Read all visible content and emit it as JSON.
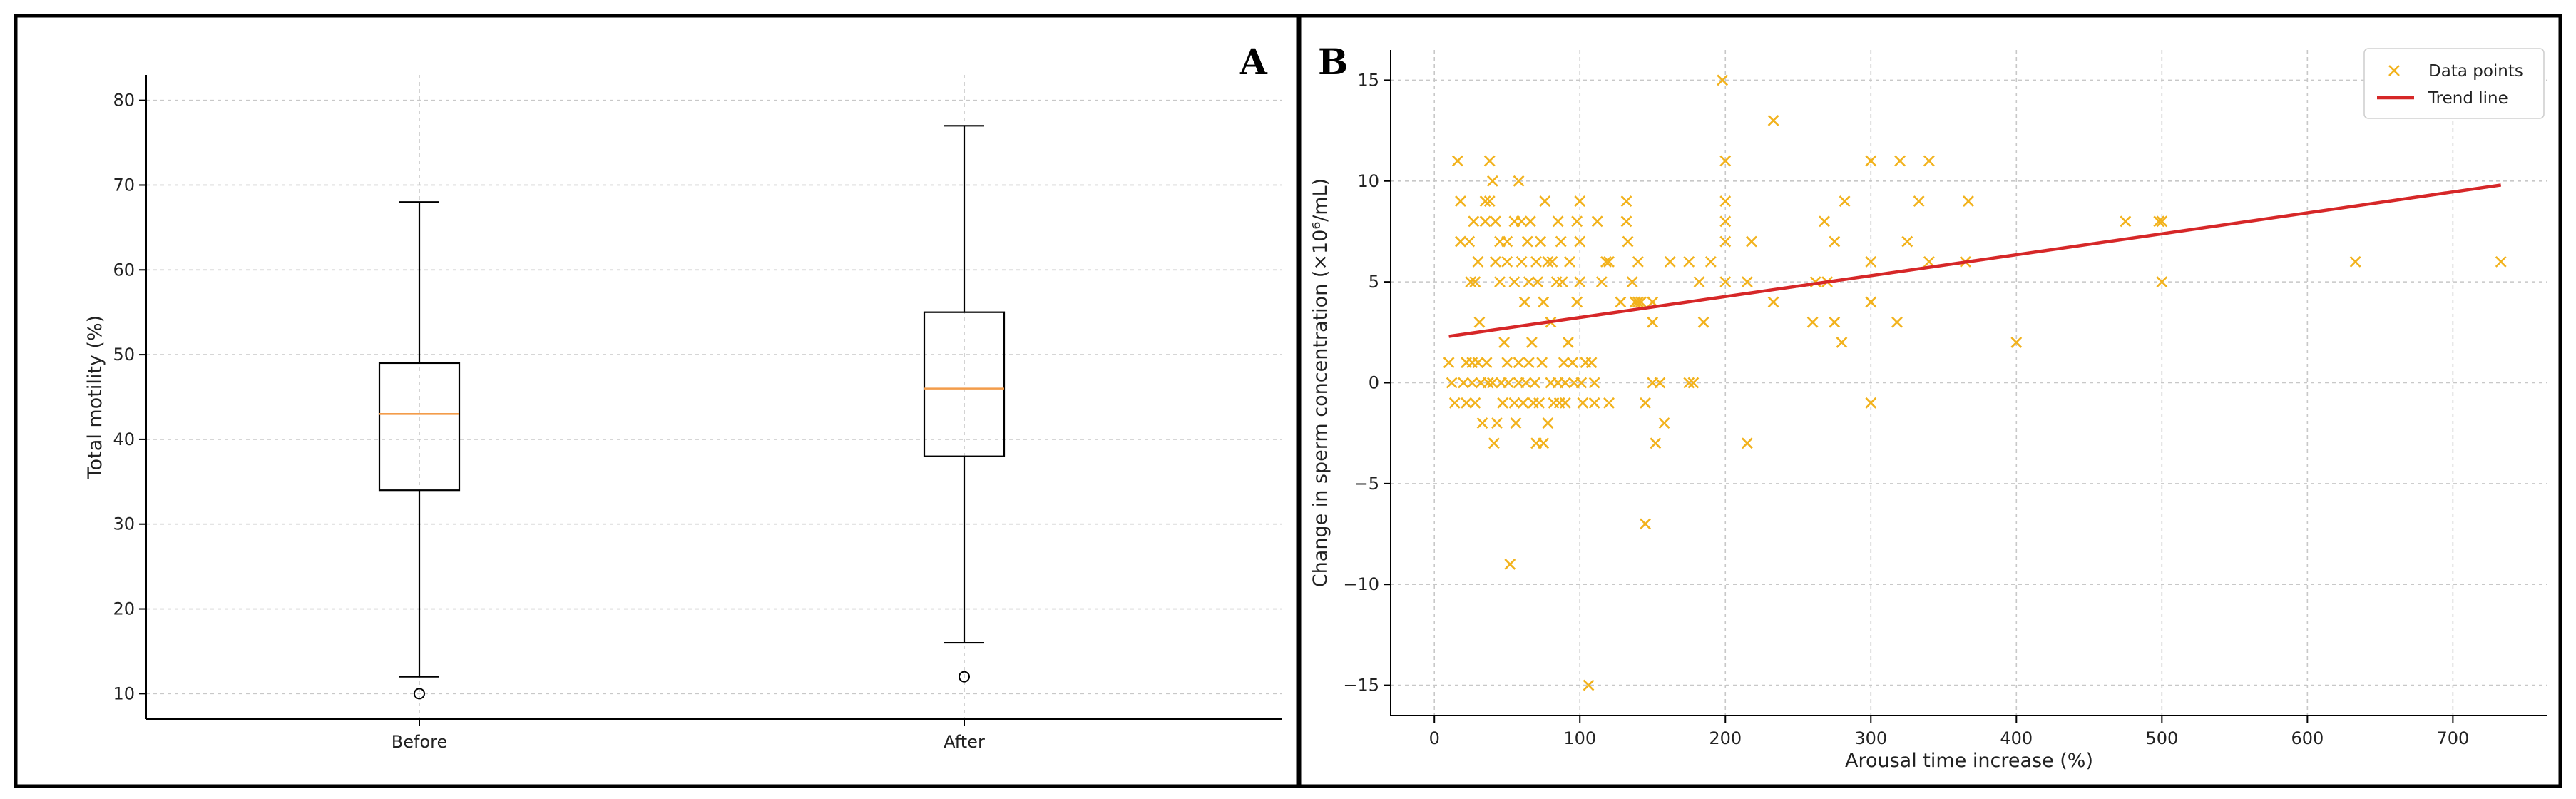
{
  "chart_data": [
    {
      "panel": "A",
      "type": "box",
      "title": "",
      "xlabel": "",
      "ylabel": "Total motility (%)",
      "ylim": [
        7,
        83
      ],
      "yticks": [
        10,
        20,
        30,
        40,
        50,
        60,
        70,
        80
      ],
      "grid": true,
      "categories": [
        "Before",
        "After"
      ],
      "boxes": [
        {
          "name": "Before",
          "whisker_low": 12,
          "q1": 34,
          "median": 43,
          "q3": 49,
          "whisker_high": 68,
          "outliers": [
            10
          ]
        },
        {
          "name": "After",
          "whisker_low": 16,
          "q1": 38,
          "median": 46,
          "q3": 55,
          "whisker_high": 77,
          "outliers": [
            12
          ]
        }
      ],
      "colors": {
        "box": "#000000",
        "median": "#f39c4a",
        "grid": "#c8c8c8"
      }
    },
    {
      "panel": "B",
      "type": "scatter",
      "title": "",
      "xlabel": "Arousal time increase (%)",
      "ylabel": "Change in sperm concentration (×10⁶/mL)",
      "xlim": [
        -30,
        765
      ],
      "ylim": [
        -16.5,
        16.5
      ],
      "xticks": [
        0,
        100,
        200,
        300,
        400,
        500,
        600,
        700
      ],
      "yticks": [
        -15,
        -10,
        -5,
        0,
        5,
        10,
        15
      ],
      "grid": true,
      "legend": {
        "position": "top-right",
        "entries": [
          "Data points",
          "Trend line"
        ]
      },
      "series": [
        {
          "name": "Data points",
          "marker": "x",
          "color": "#f2b21c",
          "points": [
            [
              10,
              1
            ],
            [
              12,
              0
            ],
            [
              14,
              -1
            ],
            [
              16,
              11
            ],
            [
              18,
              9
            ],
            [
              18,
              7
            ],
            [
              20,
              0
            ],
            [
              22,
              1
            ],
            [
              22,
              -1
            ],
            [
              24,
              7
            ],
            [
              25,
              5
            ],
            [
              26,
              1
            ],
            [
              26,
              0
            ],
            [
              27,
              8
            ],
            [
              28,
              5
            ],
            [
              28,
              -1
            ],
            [
              30,
              1
            ],
            [
              30,
              6
            ],
            [
              31,
              3
            ],
            [
              32,
              0
            ],
            [
              33,
              -2
            ],
            [
              35,
              9
            ],
            [
              35,
              8
            ],
            [
              36,
              1
            ],
            [
              37,
              0
            ],
            [
              38,
              11
            ],
            [
              38,
              9
            ],
            [
              40,
              10
            ],
            [
              40,
              0
            ],
            [
              41,
              -3
            ],
            [
              42,
              8
            ],
            [
              42,
              6
            ],
            [
              43,
              -2
            ],
            [
              45,
              7
            ],
            [
              45,
              5
            ],
            [
              46,
              0
            ],
            [
              47,
              -1
            ],
            [
              48,
              2
            ],
            [
              50,
              7
            ],
            [
              50,
              1
            ],
            [
              50,
              6
            ],
            [
              51,
              0
            ],
            [
              52,
              -9
            ],
            [
              55,
              8
            ],
            [
              55,
              5
            ],
            [
              55,
              -1
            ],
            [
              56,
              -2
            ],
            [
              58,
              10
            ],
            [
              58,
              1
            ],
            [
              58,
              0
            ],
            [
              60,
              6
            ],
            [
              60,
              8
            ],
            [
              61,
              -1
            ],
            [
              62,
              4
            ],
            [
              63,
              0
            ],
            [
              64,
              7
            ],
            [
              65,
              5
            ],
            [
              65,
              1
            ],
            [
              66,
              8
            ],
            [
              67,
              2
            ],
            [
              68,
              -1
            ],
            [
              69,
              0
            ],
            [
              70,
              6
            ],
            [
              70,
              -3
            ],
            [
              71,
              5
            ],
            [
              72,
              -1
            ],
            [
              73,
              7
            ],
            [
              74,
              1
            ],
            [
              75,
              4
            ],
            [
              75,
              -3
            ],
            [
              76,
              9
            ],
            [
              78,
              -2
            ],
            [
              78,
              6
            ],
            [
              80,
              3
            ],
            [
              80,
              0
            ],
            [
              81,
              6
            ],
            [
              82,
              -1
            ],
            [
              84,
              5
            ],
            [
              85,
              8
            ],
            [
              85,
              0
            ],
            [
              86,
              -1
            ],
            [
              87,
              7
            ],
            [
              88,
              5
            ],
            [
              89,
              1
            ],
            [
              90,
              -1
            ],
            [
              90,
              0
            ],
            [
              92,
              2
            ],
            [
              93,
              6
            ],
            [
              95,
              1
            ],
            [
              96,
              0
            ],
            [
              98,
              8
            ],
            [
              98,
              4
            ],
            [
              100,
              9
            ],
            [
              100,
              7
            ],
            [
              100,
              5
            ],
            [
              101,
              0
            ],
            [
              102,
              -1
            ],
            [
              104,
              1
            ],
            [
              106,
              -15
            ],
            [
              108,
              1
            ],
            [
              110,
              0
            ],
            [
              110,
              -1
            ],
            [
              112,
              8
            ],
            [
              115,
              5
            ],
            [
              118,
              6
            ],
            [
              120,
              6
            ],
            [
              120,
              -1
            ],
            [
              128,
              4
            ],
            [
              132,
              9
            ],
            [
              132,
              8
            ],
            [
              133,
              7
            ],
            [
              136,
              5
            ],
            [
              138,
              4
            ],
            [
              140,
              4
            ],
            [
              140,
              6
            ],
            [
              142,
              4
            ],
            [
              145,
              -1
            ],
            [
              145,
              -7
            ],
            [
              150,
              4
            ],
            [
              150,
              3
            ],
            [
              150,
              0
            ],
            [
              152,
              -3
            ],
            [
              155,
              0
            ],
            [
              158,
              -2
            ],
            [
              162,
              6
            ],
            [
              175,
              6
            ],
            [
              175,
              0
            ],
            [
              178,
              0
            ],
            [
              182,
              5
            ],
            [
              185,
              3
            ],
            [
              190,
              6
            ],
            [
              198,
              15
            ],
            [
              200,
              11
            ],
            [
              200,
              9
            ],
            [
              200,
              8
            ],
            [
              200,
              7
            ],
            [
              200,
              5
            ],
            [
              215,
              5
            ],
            [
              215,
              -3
            ],
            [
              218,
              7
            ],
            [
              233,
              13
            ],
            [
              233,
              4
            ],
            [
              260,
              3
            ],
            [
              262,
              5
            ],
            [
              268,
              8
            ],
            [
              270,
              5
            ],
            [
              275,
              7
            ],
            [
              275,
              3
            ],
            [
              280,
              2
            ],
            [
              282,
              9
            ],
            [
              300,
              11
            ],
            [
              300,
              6
            ],
            [
              300,
              4
            ],
            [
              300,
              -1
            ],
            [
              318,
              3
            ],
            [
              320,
              11
            ],
            [
              325,
              7
            ],
            [
              333,
              9
            ],
            [
              340,
              11
            ],
            [
              340,
              6
            ],
            [
              365,
              6
            ],
            [
              367,
              9
            ],
            [
              400,
              2
            ],
            [
              475,
              8
            ],
            [
              498,
              8
            ],
            [
              500,
              8
            ],
            [
              500,
              5
            ],
            [
              633,
              6
            ],
            [
              733,
              6
            ]
          ]
        },
        {
          "name": "Trend line",
          "type": "line",
          "color": "#d62728",
          "x": [
            10,
            733
          ],
          "y": [
            2.3,
            9.8
          ]
        }
      ]
    }
  ],
  "panels": {
    "a": {
      "letter": "A"
    },
    "b": {
      "letter": "B"
    }
  }
}
